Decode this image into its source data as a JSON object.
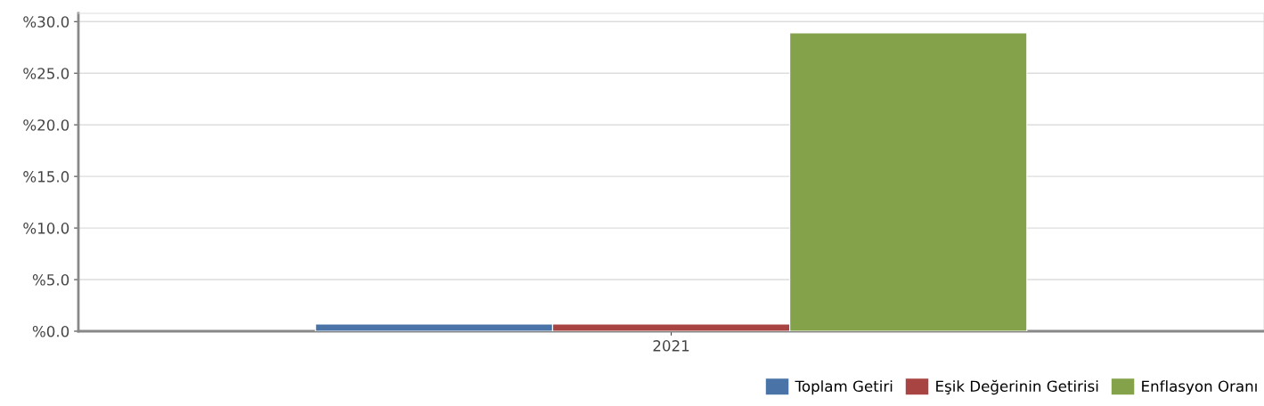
{
  "chart_data": {
    "type": "bar",
    "categories": [
      "2021"
    ],
    "series": [
      {
        "name": "Toplam Getiri",
        "color": "#4a74a8",
        "values": [
          0.7
        ]
      },
      {
        "name": "Eşik Değerinin Getirisi",
        "color": "#a84442",
        "values": [
          0.7
        ]
      },
      {
        "name": "Enflasyon Oranı",
        "color": "#84a24a",
        "values": [
          28.9
        ]
      }
    ],
    "ylim": [
      0,
      30.8
    ],
    "yticks": [
      {
        "value": 0,
        "label": "%0.0"
      },
      {
        "value": 5,
        "label": "%5.0"
      },
      {
        "value": 10,
        "label": "%10.0"
      },
      {
        "value": 15,
        "label": "%15.0"
      },
      {
        "value": 20,
        "label": "%20.0"
      },
      {
        "value": 25,
        "label": "%25.0"
      },
      {
        "value": 30,
        "label": "%30.0"
      }
    ],
    "grid": "y",
    "legend": "bottom right"
  }
}
